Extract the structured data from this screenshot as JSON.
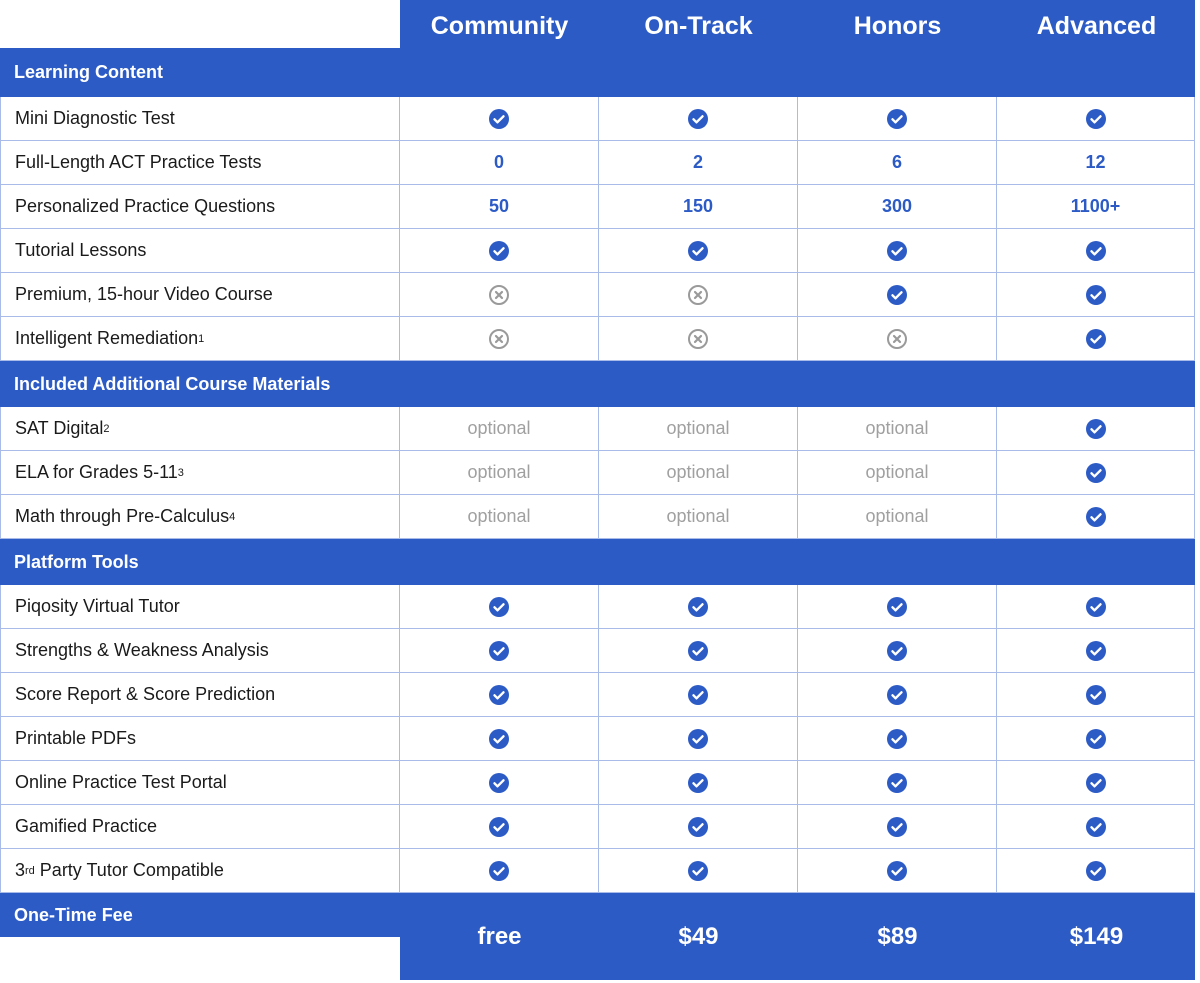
{
  "columns": [
    "Community",
    "On-Track",
    "Honors",
    "Advanced"
  ],
  "sections": [
    {
      "title": "Learning Content",
      "rows": [
        {
          "label": "Mini Diagnostic Test",
          "cells": [
            true,
            true,
            true,
            true
          ]
        },
        {
          "label": "Full-Length ACT Practice Tests",
          "cells": [
            0,
            2,
            6,
            12
          ]
        },
        {
          "label": "Personalized Practice Questions",
          "cells": [
            50,
            150,
            300,
            "1100+"
          ]
        },
        {
          "label": "Tutorial Lessons",
          "cells": [
            true,
            true,
            true,
            true
          ]
        },
        {
          "label": "Premium, 15-hour Video Course",
          "cells": [
            false,
            false,
            true,
            true
          ]
        },
        {
          "label": "Intelligent Remediation",
          "sup": "1",
          "cells": [
            false,
            false,
            false,
            true
          ]
        }
      ]
    },
    {
      "title": "Included Additional Course Materials",
      "rows": [
        {
          "label": "SAT Digital",
          "sup": "2",
          "cells": [
            "optional",
            "optional",
            "optional",
            true
          ]
        },
        {
          "label": "ELA for Grades 5-11",
          "sup": "3",
          "cells": [
            "optional",
            "optional",
            "optional",
            true
          ]
        },
        {
          "label": "Math through Pre-Calculus",
          "sup": "4",
          "cells": [
            "optional",
            "optional",
            "optional",
            true
          ]
        }
      ]
    },
    {
      "title": "Platform Tools",
      "rows": [
        {
          "label": "Piqosity Virtual Tutor",
          "cells": [
            true,
            true,
            true,
            true
          ]
        },
        {
          "label": "Strengths & Weakness Analysis",
          "cells": [
            true,
            true,
            true,
            true
          ]
        },
        {
          "label": "Score Report & Score Prediction",
          "cells": [
            true,
            true,
            true,
            true
          ]
        },
        {
          "label": "Printable PDFs",
          "cells": [
            true,
            true,
            true,
            true
          ]
        },
        {
          "label": "Online Practice Test Portal",
          "cells": [
            true,
            true,
            true,
            true
          ]
        },
        {
          "label": "Gamified Practice",
          "cells": [
            true,
            true,
            true,
            true
          ]
        },
        {
          "prefix": "3",
          "sup": "rd",
          "label": "Party Tutor Compatible",
          "cells": [
            true,
            true,
            true,
            true
          ]
        }
      ]
    }
  ],
  "fee": {
    "label": "One-Time Fee",
    "values": [
      "free",
      "$49",
      "$89",
      "$149"
    ]
  }
}
